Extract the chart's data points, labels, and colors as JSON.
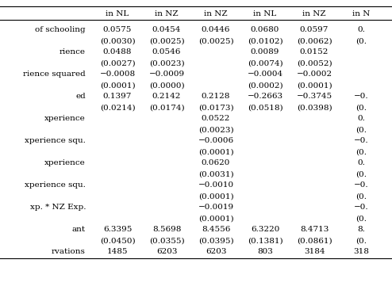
{
  "col_headers": [
    "in NL",
    "in NZ",
    "in NZ",
    "in NL",
    "in NZ",
    "in N"
  ],
  "display_rows": [
    [
      "of schooling",
      "0.0575",
      "0.0454",
      "0.0446",
      "0.0680",
      "0.0597",
      "0."
    ],
    [
      "",
      "(0.0030)",
      "(0.0025)",
      "(0.0025)",
      "(0.0102)",
      "(0.0062)",
      "(0."
    ],
    [
      "rience",
      "0.0488",
      "0.0546",
      "",
      "0.0089",
      "0.0152",
      ""
    ],
    [
      "",
      "(0.0027)",
      "(0.0023)",
      "",
      "(0.0074)",
      "(0.0052)",
      ""
    ],
    [
      "rience squared",
      "−0.0008",
      "−0.0009",
      "",
      "−0.0004",
      "−0.0002",
      ""
    ],
    [
      "",
      "(0.0001)",
      "(0.0000)",
      "",
      "(0.0002)",
      "(0.0001)",
      ""
    ],
    [
      "ed",
      "0.1397",
      "0.2142",
      "0.2128",
      "−0.2663",
      "−0.3745",
      "−0."
    ],
    [
      "",
      "(0.0214)",
      "(0.0174)",
      "(0.0173)",
      "(0.0518)",
      "(0.0398)",
      "(0."
    ],
    [
      "xperience",
      "",
      "",
      "0.0522",
      "",
      "",
      "0."
    ],
    [
      "",
      "",
      "",
      "(0.0023)",
      "",
      "",
      "(0."
    ],
    [
      "xperience squ.",
      "",
      "",
      "−0.0006",
      "",
      "",
      "−0."
    ],
    [
      "",
      "",
      "",
      "(0.0001)",
      "",
      "",
      "(0."
    ],
    [
      "xperience",
      "",
      "",
      "0.0620",
      "",
      "",
      "0."
    ],
    [
      "",
      "",
      "",
      "(0.0031)",
      "",
      "",
      "(0."
    ],
    [
      "xperience squ.",
      "",
      "",
      "−0.0010",
      "",
      "",
      "−0."
    ],
    [
      "",
      "",
      "",
      "(0.0001)",
      "",
      "",
      "(0."
    ],
    [
      "xp. * NZ Exp.",
      "",
      "",
      "−0.0019",
      "",
      "",
      "−0."
    ],
    [
      "",
      "",
      "",
      "(0.0001)",
      "",
      "",
      "(0."
    ],
    [
      "ant",
      "6.3395",
      "8.5698",
      "8.4556",
      "6.3220",
      "8.4713",
      "8."
    ],
    [
      "",
      "(0.0450)",
      "(0.0355)",
      "(0.0395)",
      "(0.1381)",
      "(0.0861)",
      "(0."
    ],
    [
      "rvations",
      "1485",
      "6203",
      "6203",
      "803",
      "3184",
      "318"
    ]
  ],
  "bg_color": "#ffffff",
  "text_color": "#000000",
  "font_size": 7.5,
  "header_font_size": 7.5
}
